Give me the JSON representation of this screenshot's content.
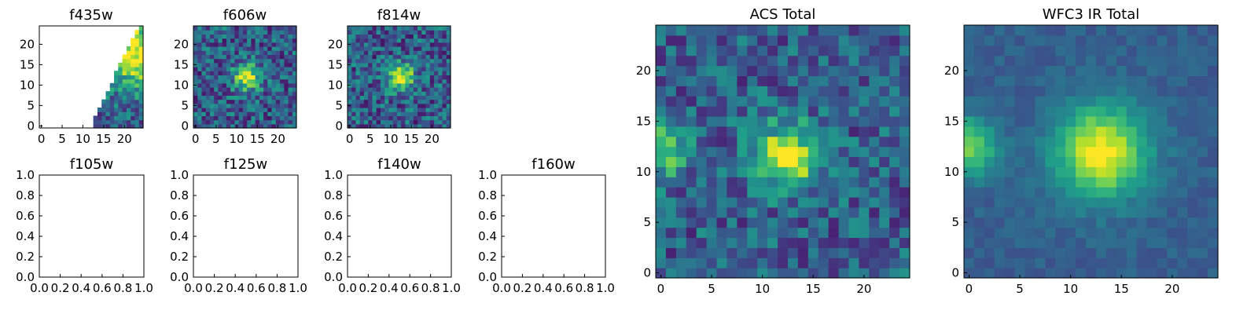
{
  "figure": {
    "colormap": "viridis",
    "colors": {
      "background": "#ffffff",
      "axes": "#000000"
    }
  },
  "chart_data": [
    {
      "type": "heatmap",
      "title": "f435w",
      "xticks": [
        "0",
        "5",
        "10",
        "15",
        "20"
      ],
      "yticks": [
        "0",
        "5",
        "10",
        "15",
        "20"
      ],
      "xlim": [
        -0.5,
        24.5
      ],
      "ylim": [
        -0.5,
        24.5
      ],
      "grid_size": 25,
      "note": "mostly empty (masked) image; data only in lower-right wedge",
      "mask": "wedge",
      "peak": [
        23,
        18
      ],
      "sigma": 6,
      "noise": 0.45,
      "seed": 11
    },
    {
      "type": "heatmap",
      "title": "f606w",
      "xticks": [
        "0",
        "5",
        "10",
        "15",
        "20"
      ],
      "yticks": [
        "0",
        "5",
        "10",
        "15",
        "20"
      ],
      "xlim": [
        -0.5,
        24.5
      ],
      "ylim": [
        -0.5,
        24.5
      ],
      "grid_size": 25,
      "peak": [
        12.5,
        12
      ],
      "sigma": 2.2,
      "noise": 0.5,
      "seed": 23
    },
    {
      "type": "heatmap",
      "title": "f814w",
      "xticks": [
        "0",
        "5",
        "10",
        "15",
        "20"
      ],
      "yticks": [
        "0",
        "5",
        "10",
        "15",
        "20"
      ],
      "xlim": [
        -0.5,
        24.5
      ],
      "ylim": [
        -0.5,
        24.5
      ],
      "grid_size": 25,
      "peak": [
        12.5,
        12
      ],
      "sigma": 2.2,
      "noise": 0.5,
      "seed": 37
    },
    {
      "type": "empty",
      "title": "f105w",
      "xticks": [
        "0.0",
        "0.2",
        "0.4",
        "0.6",
        "0.8",
        "1.0"
      ],
      "yticks": [
        "0.0",
        "0.2",
        "0.4",
        "0.6",
        "0.8",
        "1.0"
      ],
      "xlim": [
        0,
        1
      ],
      "ylim": [
        0,
        1
      ]
    },
    {
      "type": "empty",
      "title": "f125w",
      "xticks": [
        "0.0",
        "0.2",
        "0.4",
        "0.6",
        "0.8",
        "1.0"
      ],
      "yticks": [
        "0.0",
        "0.2",
        "0.4",
        "0.6",
        "0.8",
        "1.0"
      ],
      "xlim": [
        0,
        1
      ],
      "ylim": [
        0,
        1
      ]
    },
    {
      "type": "empty",
      "title": "f140w",
      "xticks": [
        "0.0",
        "0.2",
        "0.4",
        "0.6",
        "0.8",
        "1.0"
      ],
      "yticks": [
        "0.0",
        "0.2",
        "0.4",
        "0.6",
        "0.8",
        "1.0"
      ],
      "xlim": [
        0,
        1
      ],
      "ylim": [
        0,
        1
      ]
    },
    {
      "type": "empty",
      "title": "f160w",
      "xticks": [
        "0.0",
        "0.2",
        "0.4",
        "0.6",
        "0.8",
        "1.0"
      ],
      "yticks": [
        "0.0",
        "0.2",
        "0.4",
        "0.6",
        "0.8",
        "1.0"
      ],
      "xlim": [
        0,
        1
      ],
      "ylim": [
        0,
        1
      ]
    },
    {
      "type": "heatmap",
      "title": "ACS Total",
      "xticks": [
        "0",
        "5",
        "10",
        "15",
        "20"
      ],
      "yticks": [
        "0",
        "5",
        "10",
        "15",
        "20"
      ],
      "xlim": [
        -0.5,
        24.5
      ],
      "ylim": [
        -0.5,
        24.5
      ],
      "grid_size": 25,
      "peak": [
        12.5,
        11.5
      ],
      "sigma": 2.3,
      "noise": 0.42,
      "seed": 51,
      "edge_blob": [
        0,
        12.5
      ]
    },
    {
      "type": "heatmap",
      "title": "WFC3 IR Total",
      "xticks": [
        "0",
        "5",
        "10",
        "15",
        "20"
      ],
      "yticks": [
        "0",
        "5",
        "10",
        "15",
        "20"
      ],
      "xlim": [
        -0.5,
        24.5
      ],
      "ylim": [
        -0.5,
        24.5
      ],
      "grid_size": 25,
      "peak": [
        13,
        12
      ],
      "sigma": 3.2,
      "noise": 0.12,
      "seed": 67,
      "edge_blob": [
        0,
        12.5
      ]
    }
  ]
}
